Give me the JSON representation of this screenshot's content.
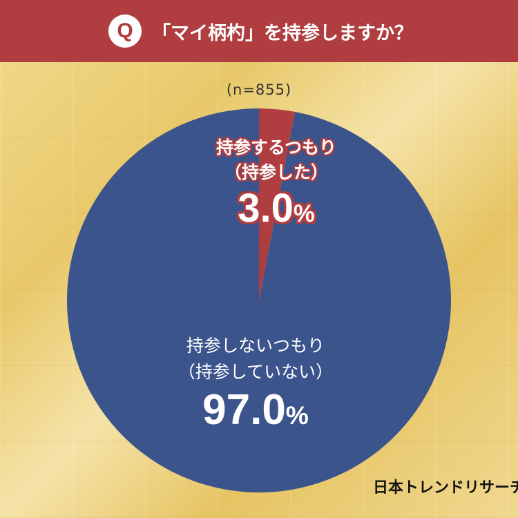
{
  "header": {
    "q_mark": "Q",
    "question": "「マイ柄杓」を持参しますか？",
    "bg_color": "#b03d3f"
  },
  "chart_data": {
    "type": "pie",
    "sample_size": "(n=855)",
    "slices": [
      {
        "label_line1": "持参するつもり",
        "label_line2": "（持参した）",
        "value": 3.0,
        "display": "3.0",
        "unit": "%",
        "color": "#b03d3f"
      },
      {
        "label_line1": "持参しないつもり",
        "label_line2": "（持参していない）",
        "value": 97.0,
        "display": "97.0",
        "unit": "%",
        "color": "#3c548c"
      }
    ]
  },
  "footer": {
    "logo": "日本トレンドリサーチ"
  }
}
